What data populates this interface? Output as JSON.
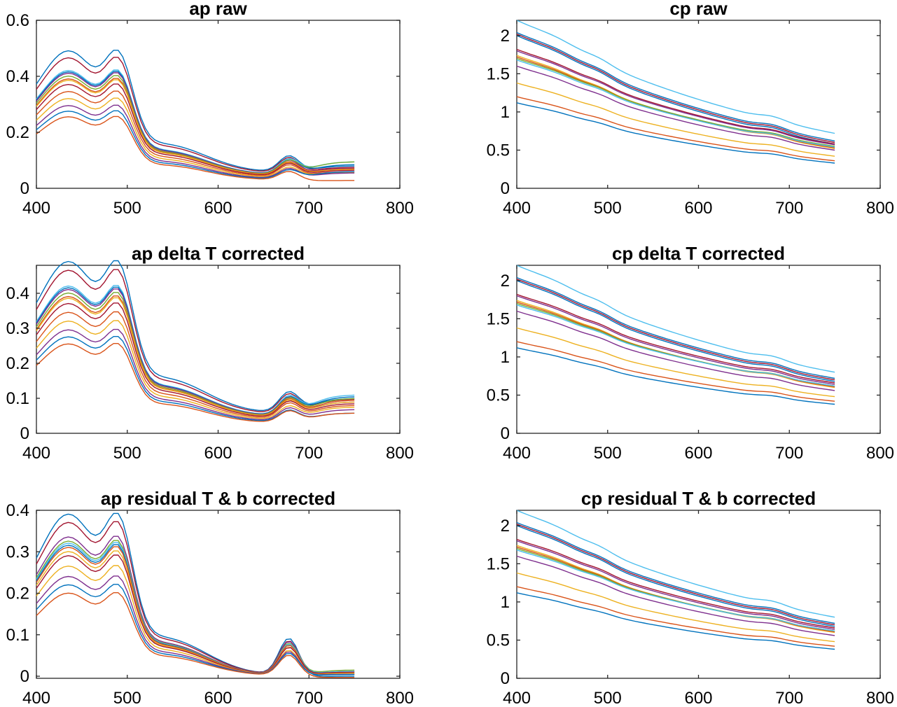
{
  "palette": [
    "#0072BD",
    "#D95319",
    "#EDB120",
    "#7E2F8E",
    "#77AC30",
    "#4DBEEE",
    "#A2142F"
  ],
  "wavelength": {
    "start": 400,
    "end": 750
  },
  "chart_data": [
    {
      "type": "line",
      "title": "ap raw",
      "xlim": [
        400,
        800
      ],
      "ylim": [
        0,
        0.6
      ],
      "xticks": [
        "400",
        "500",
        "600",
        "700",
        "800"
      ],
      "yticks": [
        "0",
        "0.2",
        "0.4",
        "0.6"
      ],
      "shape": "ap",
      "grid": false,
      "series": [
        {
          "peak": 0.49,
          "red": 0.216,
          "tail": 0.08,
          "color": "#0072BD"
        },
        {
          "peak": 0.465,
          "red": 0.205,
          "tail": 0.075,
          "color": "#A2142F"
        },
        {
          "peak": 0.42,
          "red": 0.19,
          "tail": 0.095,
          "color": "#4DBEEE"
        },
        {
          "peak": 0.415,
          "red": 0.185,
          "tail": 0.085,
          "color": "#0072BD"
        },
        {
          "peak": 0.41,
          "red": 0.185,
          "tail": 0.072,
          "color": "#7E2F8E"
        },
        {
          "peak": 0.4,
          "red": 0.18,
          "tail": 0.095,
          "color": "#77AC30"
        },
        {
          "peak": 0.39,
          "red": 0.175,
          "tail": 0.07,
          "color": "#D95319"
        },
        {
          "peak": 0.385,
          "red": 0.17,
          "tail": 0.068,
          "color": "#EDB120"
        },
        {
          "peak": 0.37,
          "red": 0.165,
          "tail": 0.065,
          "color": "#A2142F"
        },
        {
          "peak": 0.345,
          "red": 0.155,
          "tail": 0.06,
          "color": "#D95319"
        },
        {
          "peak": 0.32,
          "red": 0.14,
          "tail": 0.058,
          "color": "#EDB120"
        },
        {
          "peak": 0.295,
          "red": 0.13,
          "tail": 0.055,
          "color": "#7E2F8E"
        },
        {
          "peak": 0.275,
          "red": 0.12,
          "tail": 0.06,
          "color": "#0072BD"
        },
        {
          "peak": 0.255,
          "red": 0.115,
          "tail": 0.028,
          "color": "#D95319"
        }
      ]
    },
    {
      "type": "line",
      "title": "cp raw",
      "xlim": [
        400,
        800
      ],
      "ylim": [
        0,
        2.2
      ],
      "xticks": [
        "400",
        "500",
        "600",
        "700",
        "800"
      ],
      "yticks": [
        "0",
        "0.5",
        "1",
        "1.5",
        "2"
      ],
      "shape": "cp",
      "grid": false,
      "series": [
        {
          "start": 2.2,
          "end": 0.72,
          "color": "#4DBEEE"
        },
        {
          "start": 2.04,
          "end": 0.62,
          "color": "#0072BD"
        },
        {
          "start": 2.02,
          "end": 0.6,
          "color": "#A2142F"
        },
        {
          "start": 2.0,
          "end": 0.58,
          "color": "#0072BD"
        },
        {
          "start": 1.82,
          "end": 0.58,
          "color": "#A2142F"
        },
        {
          "start": 1.8,
          "end": 0.57,
          "color": "#7E2F8E"
        },
        {
          "start": 1.74,
          "end": 0.52,
          "color": "#EDB120"
        },
        {
          "start": 1.72,
          "end": 0.53,
          "color": "#D95319"
        },
        {
          "start": 1.7,
          "end": 0.55,
          "color": "#77AC30"
        },
        {
          "start": 1.68,
          "end": 0.54,
          "color": "#4DBEEE"
        },
        {
          "start": 1.6,
          "end": 0.5,
          "color": "#7E2F8E"
        },
        {
          "start": 1.38,
          "end": 0.42,
          "color": "#EDB120"
        },
        {
          "start": 1.2,
          "end": 0.36,
          "color": "#D95319"
        },
        {
          "start": 1.12,
          "end": 0.33,
          "color": "#0072BD"
        }
      ]
    },
    {
      "type": "line",
      "title": "ap delta T corrected",
      "xlim": [
        400,
        800
      ],
      "ylim": [
        0,
        0.48
      ],
      "xticks": [
        "400",
        "500",
        "600",
        "700",
        "800"
      ],
      "yticks": [
        "0",
        "0.1",
        "0.2",
        "0.3",
        "0.4"
      ],
      "shape": "ap",
      "grid": false,
      "series": [
        {
          "peak": 0.49,
          "red": 0.216,
          "tail": 0.1,
          "color": "#0072BD"
        },
        {
          "peak": 0.465,
          "red": 0.205,
          "tail": 0.098,
          "color": "#A2142F"
        },
        {
          "peak": 0.42,
          "red": 0.19,
          "tail": 0.11,
          "color": "#4DBEEE"
        },
        {
          "peak": 0.415,
          "red": 0.185,
          "tail": 0.105,
          "color": "#0072BD"
        },
        {
          "peak": 0.41,
          "red": 0.185,
          "tail": 0.09,
          "color": "#7E2F8E"
        },
        {
          "peak": 0.4,
          "red": 0.18,
          "tail": 0.1,
          "color": "#77AC30"
        },
        {
          "peak": 0.39,
          "red": 0.175,
          "tail": 0.095,
          "color": "#D95319"
        },
        {
          "peak": 0.385,
          "red": 0.17,
          "tail": 0.09,
          "color": "#EDB120"
        },
        {
          "peak": 0.37,
          "red": 0.165,
          "tail": 0.085,
          "color": "#A2142F"
        },
        {
          "peak": 0.345,
          "red": 0.155,
          "tail": 0.08,
          "color": "#D95319"
        },
        {
          "peak": 0.32,
          "red": 0.14,
          "tail": 0.075,
          "color": "#EDB120"
        },
        {
          "peak": 0.295,
          "red": 0.13,
          "tail": 0.068,
          "color": "#7E2F8E"
        },
        {
          "peak": 0.275,
          "red": 0.12,
          "tail": 0.058,
          "color": "#0072BD"
        },
        {
          "peak": 0.255,
          "red": 0.115,
          "tail": 0.058,
          "color": "#D95319"
        }
      ]
    },
    {
      "type": "line",
      "title": "cp delta T corrected",
      "xlim": [
        400,
        800
      ],
      "ylim": [
        0,
        2.2
      ],
      "xticks": [
        "400",
        "500",
        "600",
        "700",
        "800"
      ],
      "yticks": [
        "0",
        "0.5",
        "1",
        "1.5",
        "2"
      ],
      "shape": "cp",
      "grid": false,
      "series": [
        {
          "start": 2.2,
          "end": 0.8,
          "color": "#4DBEEE"
        },
        {
          "start": 2.04,
          "end": 0.72,
          "color": "#0072BD"
        },
        {
          "start": 2.02,
          "end": 0.7,
          "color": "#A2142F"
        },
        {
          "start": 2.0,
          "end": 0.68,
          "color": "#0072BD"
        },
        {
          "start": 1.82,
          "end": 0.66,
          "color": "#A2142F"
        },
        {
          "start": 1.8,
          "end": 0.64,
          "color": "#7E2F8E"
        },
        {
          "start": 1.74,
          "end": 0.6,
          "color": "#EDB120"
        },
        {
          "start": 1.72,
          "end": 0.61,
          "color": "#D95319"
        },
        {
          "start": 1.7,
          "end": 0.62,
          "color": "#77AC30"
        },
        {
          "start": 1.68,
          "end": 0.62,
          "color": "#4DBEEE"
        },
        {
          "start": 1.6,
          "end": 0.56,
          "color": "#7E2F8E"
        },
        {
          "start": 1.38,
          "end": 0.48,
          "color": "#EDB120"
        },
        {
          "start": 1.2,
          "end": 0.42,
          "color": "#D95319"
        },
        {
          "start": 1.12,
          "end": 0.38,
          "color": "#0072BD"
        }
      ]
    },
    {
      "type": "line",
      "title": "ap residual T & b corrected",
      "xlim": [
        400,
        800
      ],
      "ylim": [
        -0.005,
        0.4
      ],
      "xticks": [
        "400",
        "500",
        "600",
        "700",
        "800"
      ],
      "yticks": [
        "0",
        "0.1",
        "0.2",
        "0.3",
        "0.4"
      ],
      "shape": "apres",
      "grid": false,
      "series": [
        {
          "peak": 0.39,
          "red": 0.118,
          "tail": 0.0,
          "color": "#0072BD"
        },
        {
          "peak": 0.37,
          "red": 0.11,
          "tail": 0.005,
          "color": "#A2142F"
        },
        {
          "peak": 0.335,
          "red": 0.105,
          "tail": 0.012,
          "color": "#7E2F8E"
        },
        {
          "peak": 0.325,
          "red": 0.1,
          "tail": 0.015,
          "color": "#77AC30"
        },
        {
          "peak": 0.32,
          "red": 0.098,
          "tail": 0.012,
          "color": "#4DBEEE"
        },
        {
          "peak": 0.315,
          "red": 0.095,
          "tail": 0.01,
          "color": "#0072BD"
        },
        {
          "peak": 0.31,
          "red": 0.095,
          "tail": 0.008,
          "color": "#D95319"
        },
        {
          "peak": 0.3,
          "red": 0.09,
          "tail": 0.008,
          "color": "#EDB120"
        },
        {
          "peak": 0.29,
          "red": 0.088,
          "tail": 0.01,
          "color": "#A2142F"
        },
        {
          "peak": 0.265,
          "red": 0.08,
          "tail": 0.006,
          "color": "#EDB120"
        },
        {
          "peak": 0.24,
          "red": 0.075,
          "tail": 0.005,
          "color": "#7E2F8E"
        },
        {
          "peak": 0.22,
          "red": 0.07,
          "tail": 0.004,
          "color": "#0072BD"
        },
        {
          "peak": 0.2,
          "red": 0.065,
          "tail": -0.003,
          "color": "#D95319"
        }
      ]
    },
    {
      "type": "line",
      "title": "cp residual T & b corrected",
      "xlim": [
        400,
        800
      ],
      "ylim": [
        0,
        2.2
      ],
      "xticks": [
        "400",
        "500",
        "600",
        "700",
        "800"
      ],
      "yticks": [
        "0",
        "0.5",
        "1",
        "1.5",
        "2"
      ],
      "shape": "cp",
      "grid": false,
      "series": [
        {
          "start": 2.2,
          "end": 0.8,
          "color": "#4DBEEE"
        },
        {
          "start": 2.04,
          "end": 0.72,
          "color": "#0072BD"
        },
        {
          "start": 2.02,
          "end": 0.7,
          "color": "#A2142F"
        },
        {
          "start": 2.0,
          "end": 0.68,
          "color": "#0072BD"
        },
        {
          "start": 1.82,
          "end": 0.66,
          "color": "#A2142F"
        },
        {
          "start": 1.8,
          "end": 0.64,
          "color": "#7E2F8E"
        },
        {
          "start": 1.74,
          "end": 0.6,
          "color": "#EDB120"
        },
        {
          "start": 1.72,
          "end": 0.61,
          "color": "#D95319"
        },
        {
          "start": 1.7,
          "end": 0.62,
          "color": "#77AC30"
        },
        {
          "start": 1.68,
          "end": 0.62,
          "color": "#4DBEEE"
        },
        {
          "start": 1.6,
          "end": 0.56,
          "color": "#7E2F8E"
        },
        {
          "start": 1.38,
          "end": 0.48,
          "color": "#EDB120"
        },
        {
          "start": 1.2,
          "end": 0.42,
          "color": "#D95319"
        },
        {
          "start": 1.12,
          "end": 0.38,
          "color": "#0072BD"
        }
      ]
    }
  ]
}
